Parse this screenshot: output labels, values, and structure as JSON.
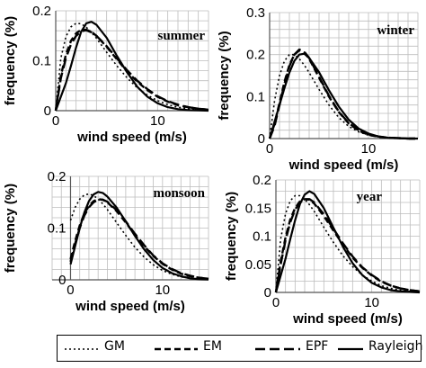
{
  "chart_data": [
    {
      "type": "line",
      "panel": "summer",
      "annotation": "summer",
      "xlabel": "wind speed (m/s)",
      "ylabel": "frequency (%)",
      "xlim": [
        0,
        15
      ],
      "ylim": [
        0,
        0.2
      ],
      "x_ticks": [
        0,
        10
      ],
      "x_tick_labels": [
        "0",
        "10"
      ],
      "y_ticks": [
        0,
        0.1,
        0.2
      ],
      "y_tick_labels": [
        "0",
        "0.1",
        "0.2"
      ],
      "grid": true,
      "series": [
        {
          "name": "GM",
          "x": [
            0,
            0.5,
            1,
            1.5,
            2,
            2.5,
            3,
            3.5,
            4,
            5,
            6,
            7,
            8,
            9,
            10,
            11,
            12,
            13,
            14,
            15
          ],
          "y": [
            0,
            0.105,
            0.148,
            0.168,
            0.175,
            0.174,
            0.167,
            0.157,
            0.145,
            0.117,
            0.09,
            0.066,
            0.046,
            0.031,
            0.02,
            0.012,
            0.007,
            0.004,
            0.002,
            0.001
          ]
        },
        {
          "name": "EM",
          "x": [
            0,
            0.5,
            1,
            1.5,
            2,
            2.5,
            3,
            3.5,
            4,
            5,
            6,
            7,
            8,
            9,
            10,
            11,
            12,
            13,
            14,
            15
          ],
          "y": [
            0,
            0.07,
            0.112,
            0.14,
            0.155,
            0.162,
            0.162,
            0.158,
            0.15,
            0.128,
            0.103,
            0.079,
            0.058,
            0.041,
            0.028,
            0.018,
            0.011,
            0.007,
            0.004,
            0.002
          ]
        },
        {
          "name": "EPF",
          "x": [
            0,
            0.5,
            1,
            1.5,
            2,
            2.5,
            3,
            3.5,
            4,
            5,
            6,
            7,
            8,
            9,
            10,
            11,
            12,
            13,
            14,
            15
          ],
          "y": [
            0,
            0.065,
            0.105,
            0.133,
            0.15,
            0.159,
            0.161,
            0.157,
            0.15,
            0.129,
            0.105,
            0.081,
            0.06,
            0.043,
            0.029,
            0.019,
            0.012,
            0.007,
            0.004,
            0.002
          ]
        },
        {
          "name": "Rayleigh",
          "x": [
            0,
            0.5,
            1,
            1.5,
            2,
            2.5,
            3,
            3.5,
            4,
            5,
            6,
            7,
            8,
            9,
            10,
            11,
            12,
            13,
            14,
            15
          ],
          "y": [
            0,
            0.028,
            0.055,
            0.09,
            0.127,
            0.158,
            0.175,
            0.178,
            0.172,
            0.146,
            0.11,
            0.077,
            0.048,
            0.028,
            0.015,
            0.007,
            0.003,
            0.001,
            0.0005,
            0
          ]
        }
      ]
    },
    {
      "type": "line",
      "panel": "winter",
      "annotation": "winter",
      "xlabel": "wind speed (m/s)",
      "ylabel": "frequency (%)",
      "xlim": [
        0,
        15
      ],
      "ylim": [
        0,
        0.3
      ],
      "x_ticks": [
        0,
        10
      ],
      "x_tick_labels": [
        "0",
        "10"
      ],
      "y_ticks": [
        0,
        0.1,
        0.2,
        0.3
      ],
      "y_tick_labels": [
        "0",
        "0.1",
        "0.2",
        "0.3"
      ],
      "grid": true,
      "series": [
        {
          "name": "GM",
          "x": [
            0,
            0.5,
            1,
            1.5,
            2,
            2.5,
            3,
            3.5,
            4,
            5,
            6,
            7,
            8,
            9,
            10,
            11,
            12,
            13,
            14,
            15
          ],
          "y": [
            0,
            0.09,
            0.15,
            0.185,
            0.2,
            0.2,
            0.19,
            0.175,
            0.157,
            0.117,
            0.08,
            0.05,
            0.029,
            0.016,
            0.008,
            0.004,
            0.002,
            0.001,
            0,
            0
          ]
        },
        {
          "name": "EM",
          "x": [
            0,
            0.5,
            1,
            1.5,
            2,
            2.5,
            3,
            3.5,
            4,
            5,
            6,
            7,
            8,
            9,
            10,
            11,
            12,
            13,
            14,
            15
          ],
          "y": [
            0,
            0.035,
            0.085,
            0.135,
            0.175,
            0.2,
            0.21,
            0.205,
            0.19,
            0.145,
            0.1,
            0.063,
            0.036,
            0.019,
            0.009,
            0.004,
            0.002,
            0.001,
            0,
            0
          ]
        },
        {
          "name": "EPF",
          "x": [
            0,
            0.5,
            1,
            1.5,
            2,
            2.5,
            3,
            3.5,
            4,
            5,
            6,
            7,
            8,
            9,
            10,
            11,
            12,
            13,
            14,
            15
          ],
          "y": [
            0,
            0.03,
            0.08,
            0.13,
            0.172,
            0.2,
            0.212,
            0.207,
            0.192,
            0.147,
            0.102,
            0.064,
            0.037,
            0.02,
            0.01,
            0.005,
            0.002,
            0.001,
            0,
            0
          ]
        },
        {
          "name": "Rayleigh",
          "x": [
            0,
            0.5,
            1,
            1.5,
            2,
            2.5,
            3,
            3.5,
            4,
            5,
            6,
            7,
            8,
            9,
            10,
            11,
            12,
            13,
            14,
            15
          ],
          "y": [
            0,
            0.04,
            0.08,
            0.12,
            0.157,
            0.185,
            0.2,
            0.202,
            0.192,
            0.158,
            0.115,
            0.076,
            0.045,
            0.024,
            0.012,
            0.005,
            0.002,
            0.001,
            0,
            0
          ]
        }
      ]
    },
    {
      "type": "line",
      "panel": "monsoon",
      "annotation": "monsoon",
      "xlabel": "wind speed (m/s)",
      "ylabel": "frequency (%)",
      "xlim": [
        -2,
        15
      ],
      "ylim": [
        0,
        0.2
      ],
      "x_ticks": [
        0,
        10
      ],
      "x_tick_labels": [
        "0",
        "10"
      ],
      "y_ticks": [
        0,
        0.1,
        0.2
      ],
      "y_tick_labels": [
        "0",
        "0.1",
        "0.2"
      ],
      "grid": true,
      "series": [
        {
          "name": "GM",
          "x": [
            0,
            0.5,
            1,
            1.5,
            2,
            2.5,
            3,
            3.5,
            4,
            5,
            6,
            7,
            8,
            9,
            10,
            11,
            12,
            13,
            14,
            15
          ],
          "y": [
            0.115,
            0.14,
            0.156,
            0.164,
            0.166,
            0.163,
            0.156,
            0.147,
            0.136,
            0.111,
            0.086,
            0.063,
            0.044,
            0.029,
            0.018,
            0.011,
            0.006,
            0.003,
            0.002,
            0.001
          ]
        },
        {
          "name": "EM",
          "x": [
            0,
            0.5,
            1,
            1.5,
            2,
            2.5,
            3,
            3.5,
            4,
            5,
            6,
            7,
            8,
            9,
            10,
            11,
            12,
            13,
            14,
            15
          ],
          "y": [
            0.04,
            0.075,
            0.105,
            0.128,
            0.143,
            0.152,
            0.156,
            0.155,
            0.15,
            0.133,
            0.111,
            0.087,
            0.065,
            0.046,
            0.031,
            0.02,
            0.012,
            0.007,
            0.004,
            0.002
          ]
        },
        {
          "name": "EPF",
          "x": [
            0,
            0.5,
            1,
            1.5,
            2,
            2.5,
            3,
            3.5,
            4,
            5,
            6,
            7,
            8,
            9,
            10,
            11,
            12,
            13,
            14,
            15
          ],
          "y": [
            0.035,
            0.07,
            0.1,
            0.124,
            0.14,
            0.15,
            0.155,
            0.155,
            0.151,
            0.135,
            0.113,
            0.089,
            0.067,
            0.047,
            0.032,
            0.021,
            0.013,
            0.008,
            0.004,
            0.002
          ]
        },
        {
          "name": "Rayleigh",
          "x": [
            0,
            0.5,
            1,
            1.5,
            2,
            2.5,
            3,
            3.5,
            4,
            5,
            6,
            7,
            8,
            9,
            10,
            11,
            12,
            13,
            14,
            15
          ],
          "y": [
            0.03,
            0.065,
            0.1,
            0.13,
            0.152,
            0.165,
            0.17,
            0.168,
            0.161,
            0.14,
            0.113,
            0.085,
            0.059,
            0.038,
            0.023,
            0.013,
            0.007,
            0.003,
            0.001,
            0.0005
          ]
        }
      ]
    },
    {
      "type": "line",
      "panel": "year",
      "annotation": "year",
      "xlabel": "wind speed (m/s)",
      "ylabel": "frequency (%)",
      "xlim": [
        0,
        15
      ],
      "ylim": [
        0,
        0.2
      ],
      "x_ticks": [
        0,
        10
      ],
      "x_tick_labels": [
        "0",
        "10"
      ],
      "y_ticks": [
        0,
        0.05,
        0.1,
        0.15,
        0.2
      ],
      "y_tick_labels": [
        "0",
        "0.05",
        "0.1",
        "0.15",
        "0.2"
      ],
      "grid": true,
      "series": [
        {
          "name": "GM",
          "x": [
            0,
            0.5,
            1,
            1.5,
            2,
            2.5,
            3,
            3.5,
            4,
            5,
            6,
            7,
            8,
            9,
            10,
            11,
            12,
            13,
            14,
            15
          ],
          "y": [
            0,
            0.095,
            0.14,
            0.163,
            0.172,
            0.172,
            0.166,
            0.156,
            0.144,
            0.116,
            0.089,
            0.065,
            0.046,
            0.031,
            0.02,
            0.012,
            0.007,
            0.004,
            0.002,
            0.001
          ]
        },
        {
          "name": "EM",
          "x": [
            0,
            0.5,
            1,
            1.5,
            2,
            2.5,
            3,
            3.5,
            4,
            5,
            6,
            7,
            8,
            9,
            10,
            11,
            12,
            13,
            14,
            15
          ],
          "y": [
            0,
            0.055,
            0.098,
            0.13,
            0.15,
            0.162,
            0.166,
            0.165,
            0.158,
            0.136,
            0.11,
            0.085,
            0.062,
            0.044,
            0.03,
            0.019,
            0.012,
            0.007,
            0.004,
            0.002
          ]
        },
        {
          "name": "EPF",
          "x": [
            0,
            0.5,
            1,
            1.5,
            2,
            2.5,
            3,
            3.5,
            4,
            5,
            6,
            7,
            8,
            9,
            10,
            11,
            12,
            13,
            14,
            15
          ],
          "y": [
            0,
            0.05,
            0.093,
            0.125,
            0.147,
            0.16,
            0.166,
            0.166,
            0.16,
            0.139,
            0.113,
            0.087,
            0.064,
            0.045,
            0.031,
            0.02,
            0.012,
            0.007,
            0.004,
            0.002
          ]
        },
        {
          "name": "Rayleigh",
          "x": [
            0,
            0.5,
            1,
            1.5,
            2,
            2.5,
            3,
            3.5,
            4,
            5,
            6,
            7,
            8,
            9,
            10,
            11,
            12,
            13,
            14,
            15
          ],
          "y": [
            0,
            0.03,
            0.06,
            0.095,
            0.128,
            0.157,
            0.174,
            0.18,
            0.175,
            0.15,
            0.115,
            0.081,
            0.052,
            0.031,
            0.017,
            0.009,
            0.004,
            0.002,
            0.001,
            0
          ]
        }
      ]
    }
  ],
  "legend": {
    "items": [
      {
        "label": "GM",
        "style": "dotted"
      },
      {
        "label": "EM",
        "style": "dashed"
      },
      {
        "label": "EPF",
        "style": "long-dashed"
      },
      {
        "label": "Rayleigh",
        "style": "solid"
      }
    ]
  }
}
